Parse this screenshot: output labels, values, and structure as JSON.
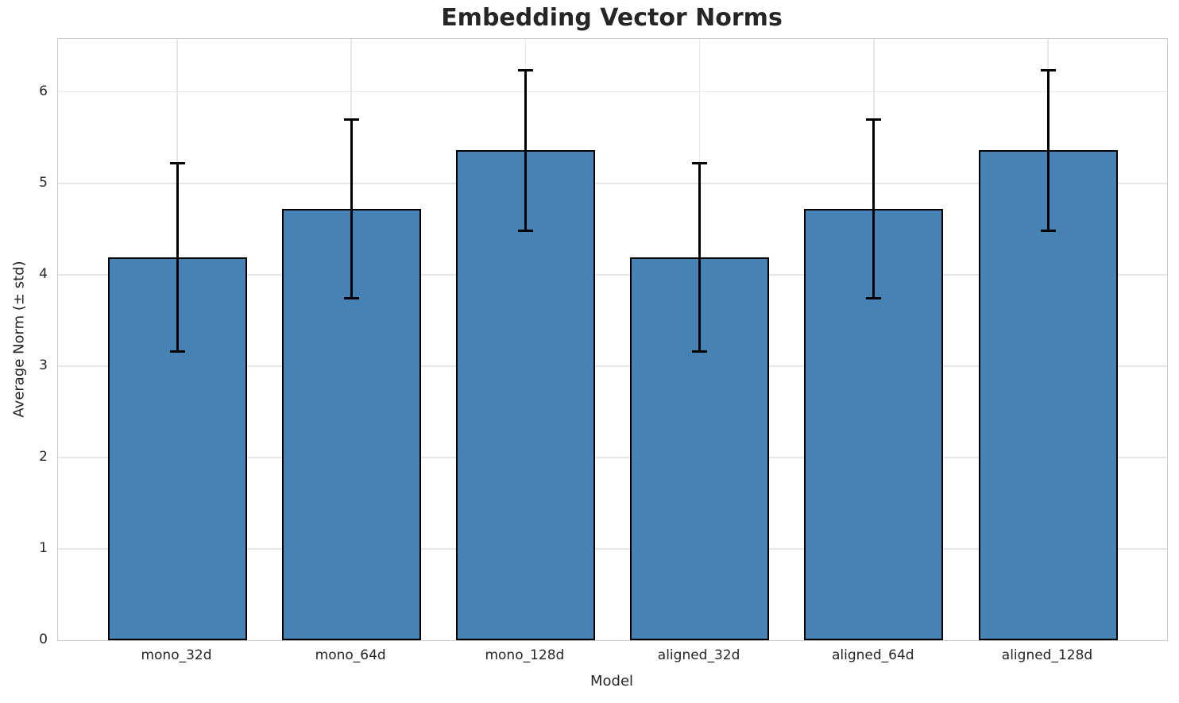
{
  "chart_data": {
    "type": "bar",
    "title": "Embedding Vector Norms",
    "xlabel": "Model",
    "ylabel": "Average Norm (± std)",
    "categories": [
      "mono_32d",
      "mono_64d",
      "mono_128d",
      "aligned_32d",
      "aligned_64d",
      "aligned_128d"
    ],
    "series": [
      {
        "name": "Average Norm",
        "values": [
          4.19,
          4.72,
          5.36,
          4.19,
          4.72,
          5.36
        ],
        "errors": [
          1.03,
          0.98,
          0.88,
          1.03,
          0.98,
          0.88
        ]
      }
    ],
    "yticks": [
      0,
      1,
      2,
      3,
      4,
      5,
      6
    ],
    "ylim": [
      0,
      6.58
    ],
    "grid": true,
    "legend_position": "none",
    "error_bars": "± std, black, capped",
    "colors": {
      "bar_fill": "#4682b4",
      "bar_edge": "#000000",
      "error_bar": "#000000",
      "grid_line": "#e7e7e7",
      "spine": "#cbcbcb",
      "text": "#262626"
    }
  }
}
